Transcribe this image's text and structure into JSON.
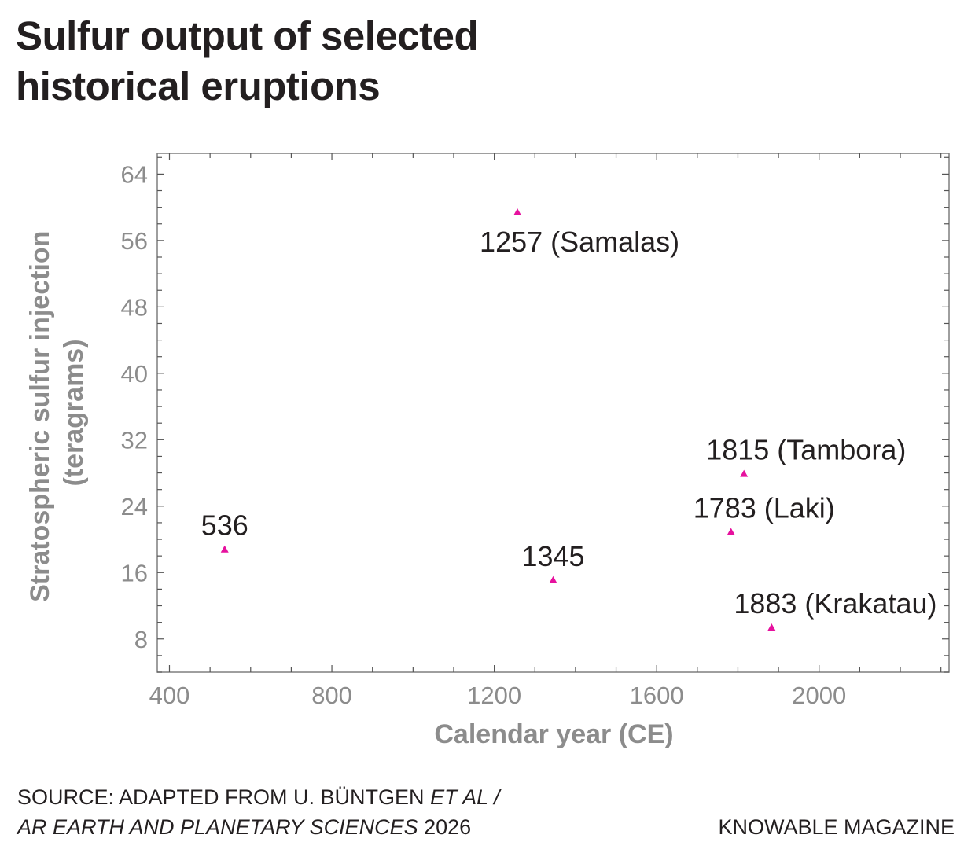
{
  "title_lines": [
    "Sulfur output of selected",
    "historical eruptions"
  ],
  "source": {
    "line1_prefix": "SOURCE: ADAPTED FROM U. BÜNTGEN ",
    "line1_italic": "ET AL /",
    "line2_italic": "AR EARTH AND PLANETARY SCIENCES",
    "line2_suffix": " 2026"
  },
  "credit": "KNOWABLE MAGAZINE",
  "colors": {
    "marker": "#e6119e",
    "axis_text": "#8c8c8c",
    "label_text": "#231f20",
    "frame": "#7f7f7f"
  },
  "chart_data": {
    "type": "scatter",
    "title": "",
    "xlabel": "Calendar year (CE)",
    "ylabel_lines": [
      "Stratospheric sulfur injection",
      "(teragrams)"
    ],
    "xlim": [
      370,
      2320
    ],
    "ylim": [
      4,
      66.5
    ],
    "xticks": [
      400,
      800,
      1200,
      1600,
      2000
    ],
    "xtick_labels": [
      "400",
      "800",
      "1200",
      "1600",
      "2000"
    ],
    "x_minor_step": 100,
    "yticks": [
      8,
      16,
      24,
      32,
      40,
      48,
      56,
      64
    ],
    "ytick_labels": [
      "8",
      "16",
      "24",
      "32",
      "40",
      "48",
      "56",
      "64"
    ],
    "y_minor_step": 2,
    "grid": false,
    "marker": "triangle",
    "points": [
      {
        "x": 536,
        "y": 18.8,
        "label": "536",
        "label_pos": "above"
      },
      {
        "x": 1257,
        "y": 59.4,
        "label": "1257 (Samalas)",
        "label_pos": "below"
      },
      {
        "x": 1345,
        "y": 15.1,
        "label": "1345",
        "label_pos": "above"
      },
      {
        "x": 1783,
        "y": 20.9,
        "label": "1783 (Laki)",
        "label_pos": "above"
      },
      {
        "x": 1815,
        "y": 27.9,
        "label": "1815 (Tambora)",
        "label_pos": "above"
      },
      {
        "x": 1883,
        "y": 9.4,
        "label": "1883 (Krakatau)",
        "label_pos": "above"
      }
    ]
  }
}
